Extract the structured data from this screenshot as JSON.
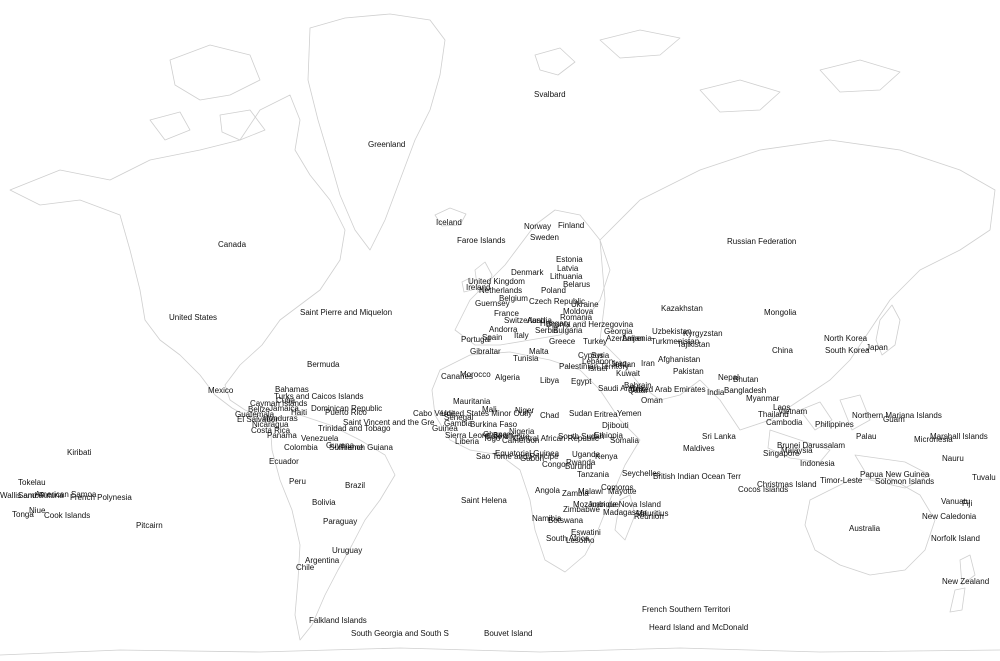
{
  "map": {
    "colors": {
      "background": "#ffffff",
      "coastline": "#cfcfcf",
      "label": "#111111"
    },
    "labels": [
      "Svalbard",
      "Greenland",
      "Iceland",
      "Faroe Islands",
      "Norway",
      "Finland",
      "Sweden",
      "Canada",
      "Russian Federation",
      "Estonia",
      "Latvia",
      "Denmark",
      "Lithuania",
      "Belarus",
      "United Kingdom",
      "Ireland",
      "Netherlands",
      "Poland",
      "Guernsey",
      "Belgium",
      "Czech Republic",
      "Ukraine",
      "France",
      "Moldova",
      "Switzerland",
      "Austria",
      "Hungary",
      "Romania",
      "Bosnia and Herzegovina",
      "Serbia",
      "Bulgaria",
      "Andorra",
      "Spain",
      "Portugal",
      "Italy",
      "Greece",
      "Turkey",
      "Georgia",
      "Azerbaijan",
      "Armenia",
      "Kazakhstan",
      "Uzbekistan",
      "Kyrgyzstan",
      "Turkmenistan",
      "Tajikistan",
      "Mongolia",
      "North Korea",
      "South Korea",
      "Japan",
      "China",
      "Saint Pierre and Miquelon",
      "United States",
      "Bermuda",
      "Gibraltar",
      "Malta",
      "Tunisia",
      "Cyprus",
      "Syria",
      "Lebanon",
      "Palestinian Territory",
      "Israel",
      "Jordan",
      "Iraq",
      "Iran",
      "Afghanistan",
      "Pakistan",
      "Canaries",
      "Morocco",
      "Algeria",
      "Libya",
      "Egypt",
      "Kuwait",
      "Saudi Arabia",
      "Bahrain",
      "Qatar",
      "United Arab Emirates",
      "Oman",
      "Nepal",
      "Bhutan",
      "Bangladesh",
      "India",
      "Myanmar",
      "Laos",
      "Vietnam",
      "Thailand",
      "Cambodia",
      "Philippines",
      "Northern Mariana Islands",
      "Guam",
      "Palau",
      "Micronesia",
      "Marshall Islands",
      "Mexico",
      "Bahamas",
      "Turks and Caicos Islands",
      "Cayman Islands",
      "Cuba",
      "Belize",
      "Guatemala",
      "Honduras",
      "El Salvador",
      "Nicaragua",
      "Costa Rica",
      "Panama",
      "Puerto Rico",
      "Dominican Republic",
      "Haiti",
      "Jamaica",
      "Trinidad and Tobago",
      "Saint Vincent and the Gre",
      "Venezuela",
      "Colombia",
      "Guyana",
      "Suriname",
      "French Guiana",
      "Ecuador",
      "Mauritania",
      "Mali",
      "Niger",
      "Chad",
      "Sudan",
      "Eritrea",
      "Yemen",
      "Djibouti",
      "Ethiopia",
      "Somalia",
      "Cabo Verde",
      "United States Minor Outly",
      "Senegal",
      "Gambia",
      "Guinea",
      "Burkina Faso",
      "Sierra Leone",
      "Liberia",
      "Cote d'Ivoire",
      "Ghana",
      "Togo",
      "Benin",
      "Nigeria",
      "Cameroon",
      "Central African Republic",
      "South Sudan",
      "Sri Lanka",
      "Maldives",
      "Brunei Darussalam",
      "Malaysia",
      "Singapore",
      "Indonesia",
      "Kiribati",
      "Tokelau",
      "Samoa",
      "Wallis and Futuna",
      "American Samoa",
      "French Polynesia",
      "Niue",
      "Tonga",
      "Cook Islands",
      "Pitcairn",
      "Peru",
      "Brazil",
      "Bolivia",
      "Paraguay",
      "Uruguay",
      "Argentina",
      "Chile",
      "Falkland Islands",
      "South Georgia and South S",
      "Bouvet Island",
      "Saint Helena",
      "Sao Tome and Principe",
      "Equatorial Guinea",
      "Gabon",
      "Congo",
      "Uganda",
      "Kenya",
      "Rwanda",
      "Burundi",
      "Tanzania",
      "Angola",
      "Zambia",
      "Malawi",
      "Mayotte",
      "Comoros",
      "Seychelles",
      "British Indian Ocean Terr",
      "Christmas Island",
      "Cocos Islands",
      "Mozambique",
      "Zimbabwe",
      "Juan de Nova Island",
      "Madagascar",
      "Mauritius",
      "Reunion",
      "Namibia",
      "Botswana",
      "Eswatini",
      "South Africa",
      "Lesotho",
      "Timor-Leste",
      "Papua New Guinea",
      "Solomon Islands",
      "Nauru",
      "Tuvalu",
      "Vanuatu",
      "Fiji",
      "New Caledonia",
      "Australia",
      "Norfolk Island",
      "New Zealand",
      "French Southern Territori",
      "Heard Island and McDonald"
    ]
  }
}
